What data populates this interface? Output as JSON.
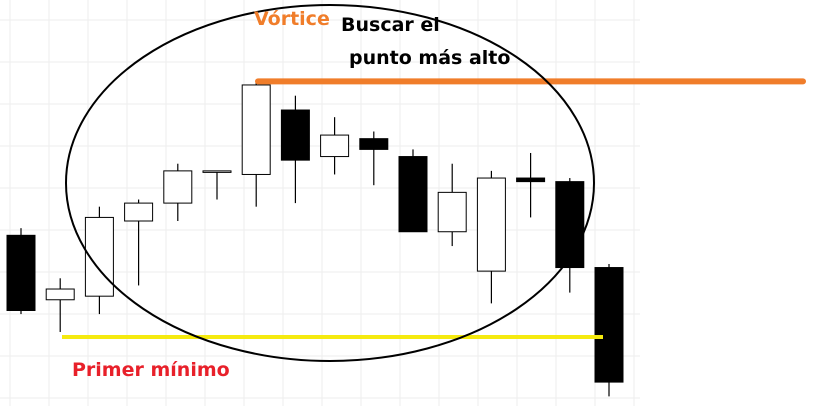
{
  "chart_data": {
    "type": "candlestick",
    "title": "",
    "xlabel": "",
    "ylabel": "",
    "grid": true,
    "ylim": [
      0,
      100
    ],
    "candles": [
      {
        "o": 46,
        "h": 48,
        "l": 24,
        "c": 25
      },
      {
        "o": 28,
        "h": 34,
        "l": 19,
        "c": 31
      },
      {
        "o": 29,
        "h": 54,
        "l": 24,
        "c": 51
      },
      {
        "o": 50,
        "h": 56,
        "l": 32,
        "c": 55
      },
      {
        "o": 55,
        "h": 66,
        "l": 50,
        "c": 64
      },
      {
        "o": 64,
        "h": 64,
        "l": 56,
        "c": 64
      },
      {
        "o": 63,
        "h": 89,
        "l": 54,
        "c": 88
      },
      {
        "o": 81,
        "h": 85,
        "l": 55,
        "c": 67
      },
      {
        "o": 68,
        "h": 79,
        "l": 63,
        "c": 74
      },
      {
        "o": 73,
        "h": 75,
        "l": 60,
        "c": 70
      },
      {
        "o": 68,
        "h": 70,
        "l": 47,
        "c": 47
      },
      {
        "o": 47,
        "h": 66,
        "l": 43,
        "c": 58
      },
      {
        "o": 36,
        "h": 64,
        "l": 27,
        "c": 62
      },
      {
        "o": 62,
        "h": 69,
        "l": 51,
        "c": 61
      },
      {
        "o": 61,
        "h": 62,
        "l": 30,
        "c": 37
      },
      {
        "o": 37,
        "h": 38,
        "l": 1,
        "c": 5
      }
    ]
  },
  "annotations": {
    "vortex_label": "Vórtice",
    "search_line1": "Buscar el",
    "search_line2": "punto más alto",
    "first_min_label": "Primer mínimo",
    "high_line_value": 89,
    "low_line_value": 19
  },
  "colors": {
    "high_line": "#f07d2a",
    "low_line": "#f5ea0f",
    "vortex_text": "#f07d2a",
    "first_min_text": "#e8202a",
    "candle_down": "#000000",
    "candle_up": "#ffffff",
    "grid": "#eeeeee"
  }
}
